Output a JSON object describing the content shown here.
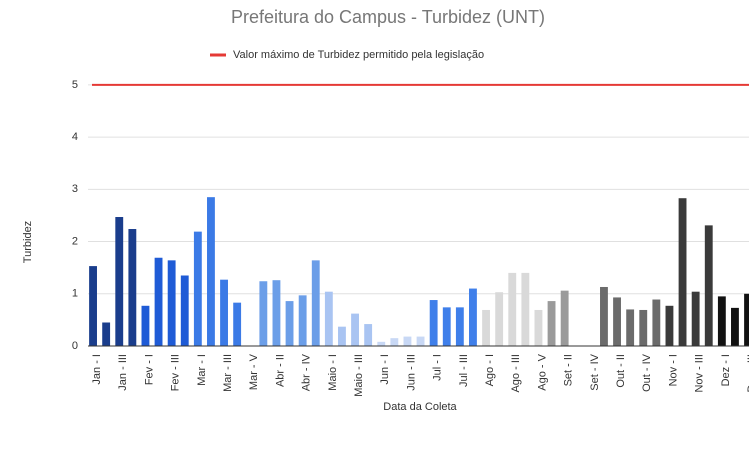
{
  "chart_data": {
    "type": "bar",
    "title": "Prefeitura do Campus - Turbidez (UNT)",
    "x_label": "Data da Coleta",
    "y_label": "Turbidez",
    "categories": [
      "Jan - I",
      null,
      "Jan - III",
      null,
      "Fev - I",
      null,
      "Fev - III",
      null,
      "Mar - I",
      null,
      "Mar - III",
      null,
      "Mar - V",
      null,
      "Abr - II",
      null,
      "Abr - IV",
      null,
      "Maio - I",
      null,
      "Maio - III",
      null,
      "Jun - I",
      null,
      "Jun - III",
      null,
      "Jul - I",
      null,
      "Jul - III",
      null,
      "Ago - I",
      null,
      "Ago - III",
      null,
      "Ago - V",
      null,
      "Set - II",
      null,
      "Set - IV",
      null,
      "Out - II",
      null,
      "Out - IV",
      null,
      "Nov - I",
      null,
      "Nov - III",
      null,
      "Dez - I",
      null,
      "Dez - III"
    ],
    "values": [
      1.53,
      0.45,
      2.47,
      2.24,
      0.77,
      1.69,
      1.64,
      1.35,
      2.19,
      2.85,
      1.27,
      0.83,
      0,
      1.24,
      1.26,
      0.86,
      0.97,
      1.64,
      1.04,
      0.37,
      0.62,
      0.42,
      0.08,
      0.15,
      0.18,
      0.18,
      0.88,
      0.74,
      0.74,
      1.1,
      0.69,
      1.03,
      1.4,
      1.4,
      0.69,
      0.86,
      1.06,
      0,
      0,
      1.13,
      0.93,
      0.7,
      0.69,
      0.89,
      0.77,
      2.83,
      1.04,
      2.31,
      0.95,
      0.73,
      1.0
    ],
    "colors": [
      "#1a3d8c",
      "#1a3d8c",
      "#1a3d8c",
      "#1a3d8c",
      "#1f5bd6",
      "#1f5bd6",
      "#1f5bd6",
      "#1f5bd6",
      "#3b7ae6",
      "#3b7ae6",
      "#3b7ae6",
      "#3b7ae6",
      "#3b7ae6",
      "#6b9ee8",
      "#6b9ee8",
      "#6b9ee8",
      "#6b9ee8",
      "#6b9ee8",
      "#a9c4f2",
      "#a9c4f2",
      "#a9c4f2",
      "#a9c4f2",
      "#c8d8f5",
      "#c8d8f5",
      "#c8d8f5",
      "#c8d8f5",
      "#3f7fea",
      "#3f7fea",
      "#3f7fea",
      "#3f7fea",
      "#d9d9d9",
      "#d9d9d9",
      "#d9d9d9",
      "#d9d9d9",
      "#d9d9d9",
      "#9a9a9a",
      "#9a9a9a",
      "#9a9a9a",
      "#9a9a9a",
      "#6b6b6b",
      "#6b6b6b",
      "#6b6b6b",
      "#6b6b6b",
      "#6b6b6b",
      "#3a3a3a",
      "#3a3a3a",
      "#3a3a3a",
      "#3a3a3a",
      "#111111",
      "#111111",
      "#111111"
    ],
    "reference_line": {
      "name": "Valor máximo de Turbidez permitido pela legislação",
      "value": 5,
      "color": "#e53935"
    },
    "ylim": [
      0,
      5.4
    ],
    "yticks": [
      0,
      1,
      2,
      3,
      4,
      5
    ],
    "grid": true
  }
}
